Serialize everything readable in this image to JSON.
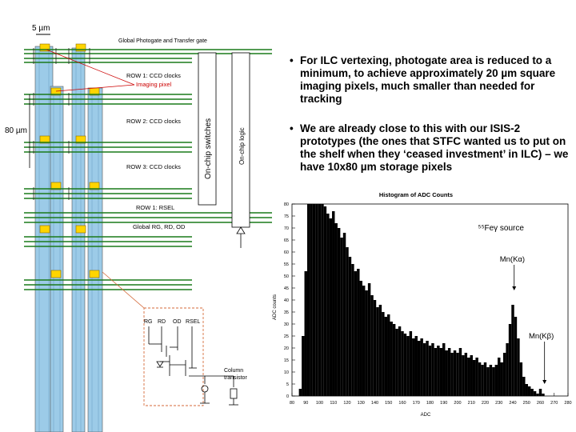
{
  "labels": {
    "scale_5um": "5 µm",
    "global_photogate": "Global Photogate and Transfer gate",
    "row1_ccd": "ROW 1: CCD clocks",
    "imaging_pixel": "Imaging pixel",
    "row2_ccd": "ROW 2: CCD clocks",
    "row3_ccd": "ROW 3: CCD clocks",
    "scale_80um": "80 µm",
    "onchip_switches": "On-chip switches",
    "onchip_logic": "On-chip logic",
    "row1_rsel": "ROW 1: RSEL",
    "global_rg_rd_od": "Global RG, RD, OD",
    "rg": "RG",
    "rd": "RD",
    "od": "OD",
    "rsel": "RSEL",
    "column_transistor": "Column transistor"
  },
  "bullets": [
    "For ILC vertexing, photogate area is reduced to a minimum, to achieve approximately 20 µm square imaging pixels, much smaller than needed for tracking",
    "We are already close to this with our ISIS-2 prototypes (the ones that STFC wanted us to put on the shelf when they ‘ceased investment’ in ILC) – we have 10x80 µm storage pixels"
  ],
  "bullet_symbol": "•",
  "colors": {
    "gate_line": "#1a7a1a",
    "storage_column": "#9ccbe8",
    "pixel_pad": "#ffd500",
    "annotation_red": "#cc0000",
    "circuit_box": "#d46a3a"
  },
  "chart_data": {
    "type": "bar",
    "title": "Histogram of ADC Counts",
    "xlabel": "ADC",
    "ylabel": "ADC counts",
    "xlim": [
      80,
      280
    ],
    "ylim": [
      0,
      80
    ],
    "xticks": [
      80,
      90,
      100,
      110,
      120,
      130,
      140,
      150,
      160,
      170,
      180,
      190,
      200,
      210,
      220,
      230,
      240,
      250,
      260,
      270,
      280
    ],
    "yticks": [
      0,
      5,
      10,
      15,
      20,
      25,
      30,
      35,
      40,
      45,
      50,
      55,
      60,
      65,
      70,
      75,
      80
    ],
    "bin_width": 2,
    "x": [
      86,
      88,
      90,
      92,
      94,
      96,
      98,
      100,
      102,
      104,
      106,
      108,
      110,
      112,
      114,
      116,
      118,
      120,
      122,
      124,
      126,
      128,
      130,
      132,
      134,
      136,
      138,
      140,
      142,
      144,
      146,
      148,
      150,
      152,
      154,
      156,
      158,
      160,
      162,
      164,
      166,
      168,
      170,
      172,
      174,
      176,
      178,
      180,
      182,
      184,
      186,
      188,
      190,
      192,
      194,
      196,
      198,
      200,
      202,
      204,
      206,
      208,
      210,
      212,
      214,
      216,
      218,
      220,
      222,
      224,
      226,
      228,
      230,
      232,
      234,
      236,
      238,
      240,
      242,
      244,
      246,
      248,
      250,
      252,
      254,
      256,
      258,
      260,
      262
    ],
    "values": [
      3,
      25,
      52,
      80,
      80,
      80,
      80,
      80,
      80,
      79,
      76,
      74,
      77,
      72,
      70,
      66,
      68,
      62,
      58,
      55,
      52,
      53,
      48,
      46,
      44,
      47,
      42,
      40,
      37,
      38,
      35,
      33,
      34,
      31,
      30,
      28,
      29,
      27,
      26,
      25,
      27,
      24,
      25,
      23,
      24,
      22,
      23,
      21,
      22,
      20,
      21,
      20,
      22,
      19,
      20,
      18,
      19,
      18,
      20,
      17,
      18,
      16,
      17,
      15,
      16,
      14,
      13,
      14,
      12,
      13,
      12,
      13,
      16,
      14,
      18,
      22,
      30,
      38,
      33,
      24,
      14,
      8,
      5,
      4,
      3,
      2,
      1,
      3,
      1
    ],
    "annotations": [
      {
        "text": "⁵⁵Feγ source",
        "x": 232,
        "y": 69
      },
      {
        "text": "Mn(Kα)",
        "x": 241,
        "y": 56,
        "arrow_to_x": 241,
        "arrow_to_y": 44
      },
      {
        "text": "Mn(Kβ)",
        "x": 262,
        "y": 24,
        "arrow_to_x": 263,
        "arrow_to_y": 5
      }
    ],
    "legend": "none",
    "grid": false
  }
}
